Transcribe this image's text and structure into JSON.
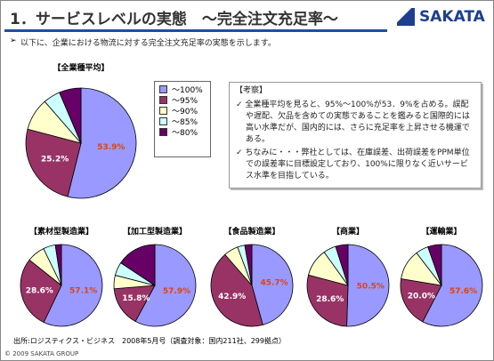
{
  "title": "1．サービスレベルの実態　～完全注文充足率～",
  "logo": "SAKATA",
  "intro": "以下に、企業における物流に対する完全注文充足率の実態を示します。",
  "legend": {
    "labels": [
      "～100%",
      "～95%",
      "～90%",
      "～85%",
      "～80%"
    ],
    "colors": [
      "#9999ff",
      "#993366",
      "#ffffcc",
      "#ccffff",
      "#660066"
    ]
  },
  "notes": {
    "heading": "【考察】",
    "items": [
      "全業種平均を見ると、95%～100%が53．9%を占める。誤配や遅配、欠品を含めての実態であることを鑑みると国際的には高い水準だが、国内的には、さらに充足率を上昇させる機運である。",
      "ちなみに・・・弊社としては、在庫誤差、出荷誤差をPPM単位での誤差率に目標設定しており、100%に限りなく近いサービス水準を目指している。"
    ]
  },
  "source": "出所:ロジスティクス・ビジネス　2008年5月号（調査対象：国内211社、299拠点）",
  "copyright": "© 2009 SAKATA GROUP",
  "chart_data": [
    {
      "type": "pie",
      "title": "【全業種平均】",
      "values": [
        53.9,
        25.2,
        9.5,
        5,
        6.4
      ],
      "value_labels": [
        "53.9%",
        "25.2%",
        null,
        null,
        null
      ]
    },
    {
      "type": "pie",
      "title": "【素材型製造業】",
      "values": [
        57.1,
        28.6,
        7.1,
        4.8,
        2.4
      ],
      "value_labels": [
        "57.1%",
        "28.6%",
        null,
        null,
        null
      ]
    },
    {
      "type": "pie",
      "title": "【加工型製造業】",
      "values": [
        57.9,
        15.8,
        5.3,
        5.3,
        15.7
      ],
      "value_labels": [
        "57.9%",
        "15.8%",
        null,
        null,
        null
      ]
    },
    {
      "type": "pie",
      "title": "【食品製造業】",
      "values": [
        45.7,
        42.9,
        5.7,
        2.9,
        2.8
      ],
      "value_labels": [
        "45.7%",
        "42.9%",
        null,
        null,
        null
      ]
    },
    {
      "type": "pie",
      "title": "【商業】",
      "values": [
        50.5,
        28.6,
        11,
        5,
        4.9
      ],
      "value_labels": [
        "50.5%",
        "28.6%",
        null,
        null,
        null
      ]
    },
    {
      "type": "pie",
      "title": "【運輸業】",
      "values": [
        57.6,
        20.0,
        12,
        5,
        5.4
      ],
      "value_labels": [
        "57.6%",
        "20.0%",
        null,
        null,
        null
      ]
    }
  ]
}
